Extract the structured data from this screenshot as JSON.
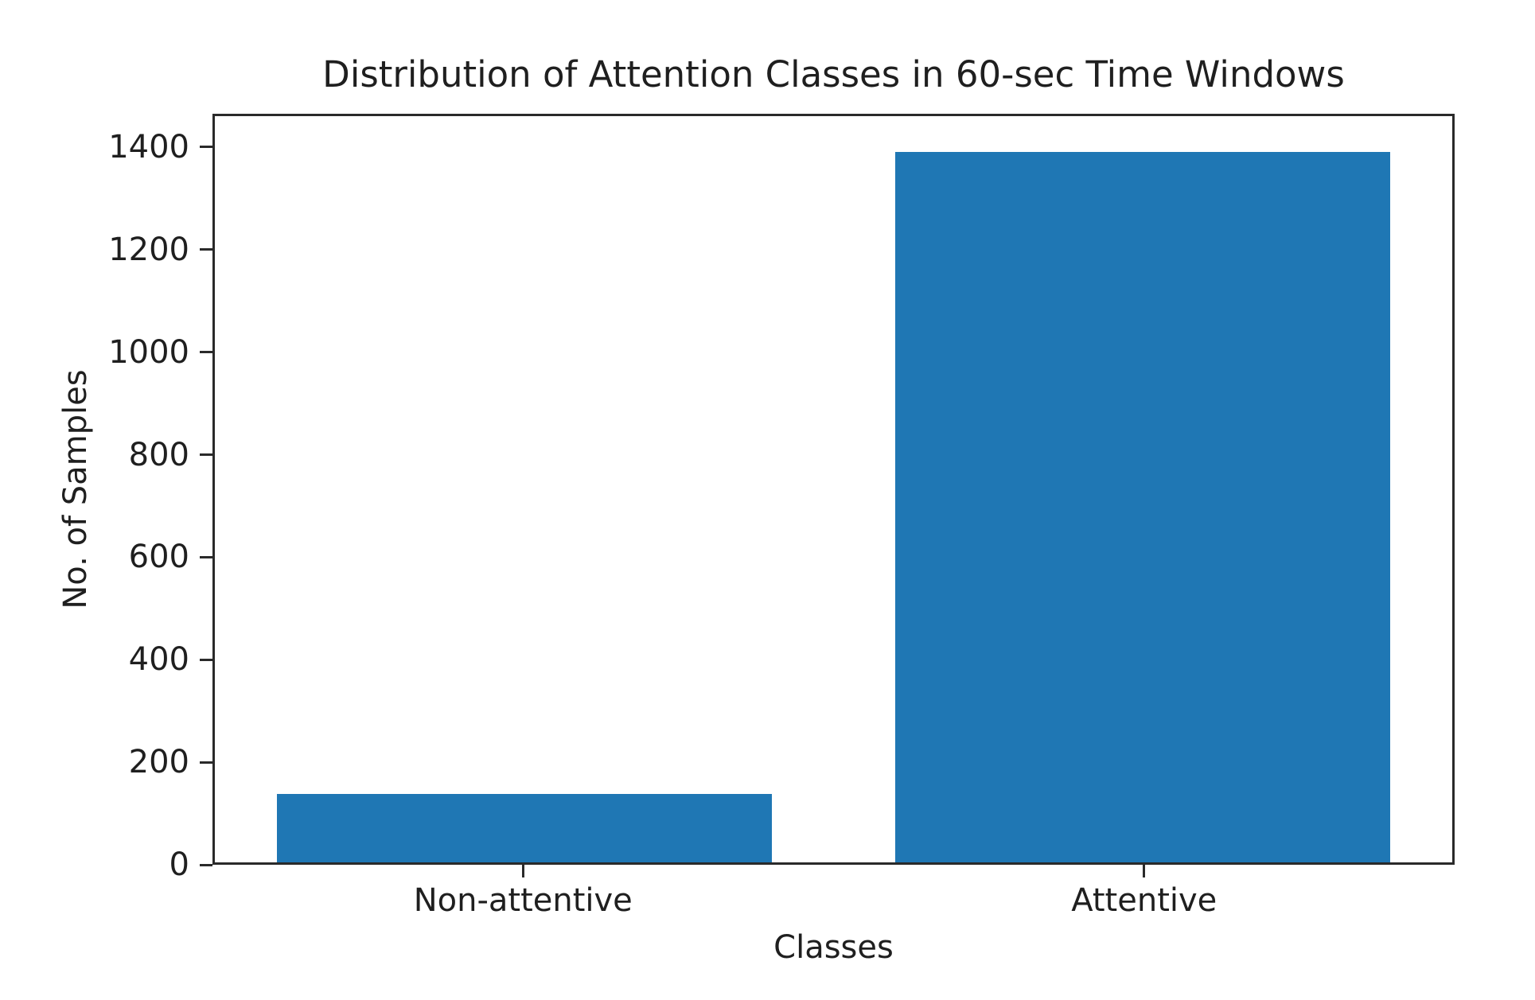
{
  "chart_data": {
    "type": "bar",
    "title": "Distribution of Attention Classes in 60-sec Time Windows",
    "xlabel": "Classes",
    "ylabel": "No. of Samples",
    "categories": [
      "Non-attentive",
      "Attentive"
    ],
    "values": [
      135,
      1395
    ],
    "y_ticks": [
      0,
      200,
      400,
      600,
      800,
      1000,
      1200,
      1400
    ],
    "ylim": [
      0,
      1465
    ],
    "bar_color": "#1f77b4",
    "grid": false,
    "legend_position": "none",
    "bar_width_fraction": 0.4,
    "bar_centers_fraction": [
      0.25,
      0.75
    ]
  }
}
